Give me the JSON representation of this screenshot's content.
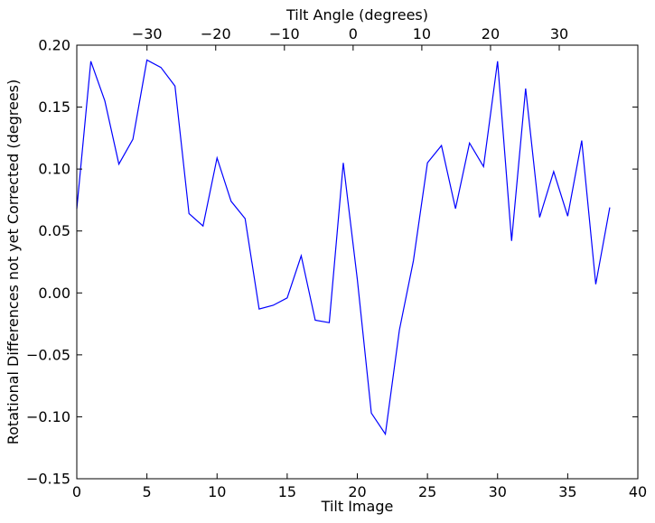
{
  "chart_data": {
    "type": "line",
    "title": "",
    "xlabel": "Tilt Image",
    "ylabel": "Rotational Differences not yet Corrected (degrees)",
    "top_xlabel": "Tilt Angle (degrees)",
    "xlim": [
      0,
      40
    ],
    "ylim": [
      -0.15,
      0.2
    ],
    "top_xlim": [
      -40.22,
      41.44
    ],
    "x_ticks": [
      0,
      5,
      10,
      15,
      20,
      25,
      30,
      35,
      40
    ],
    "y_ticks": [
      -0.15,
      -0.1,
      -0.05,
      0.0,
      0.05,
      0.1,
      0.15,
      0.2
    ],
    "x_tick_labels": [
      "0",
      "5",
      "10",
      "15",
      "20",
      "25",
      "30",
      "35",
      "40"
    ],
    "y_tick_labels": [
      "−0.15",
      "−0.10",
      "−0.05",
      "0.00",
      "0.05",
      "0.10",
      "0.15",
      "0.20"
    ],
    "top_ticks": [
      -30,
      -20,
      -10,
      0,
      10,
      20,
      30
    ],
    "top_tick_labels": [
      "−30",
      "−20",
      "−10",
      "0",
      "10",
      "20",
      "30"
    ],
    "grid": false,
    "series": [
      {
        "color": "#0000ff",
        "x": [
          0,
          1,
          2,
          3,
          4,
          5,
          6,
          7,
          8,
          9,
          10,
          11,
          12,
          13,
          14,
          15,
          16,
          17,
          18,
          19,
          20,
          21,
          22,
          23,
          24,
          25,
          26,
          27,
          28,
          29,
          30,
          31,
          32,
          33,
          34,
          35,
          36,
          37,
          38
        ],
        "values": [
          0.068,
          0.187,
          0.155,
          0.104,
          0.124,
          0.188,
          0.182,
          0.167,
          0.064,
          0.054,
          0.109,
          0.074,
          0.06,
          -0.013,
          -0.01,
          -0.004,
          0.03,
          -0.022,
          -0.024,
          0.105,
          0.011,
          -0.097,
          -0.114,
          -0.03,
          0.026,
          0.105,
          0.119,
          0.068,
          0.121,
          0.102,
          0.187,
          0.042,
          0.165,
          0.061,
          0.098,
          0.062,
          0.123,
          0.007,
          0.069
        ]
      }
    ]
  }
}
